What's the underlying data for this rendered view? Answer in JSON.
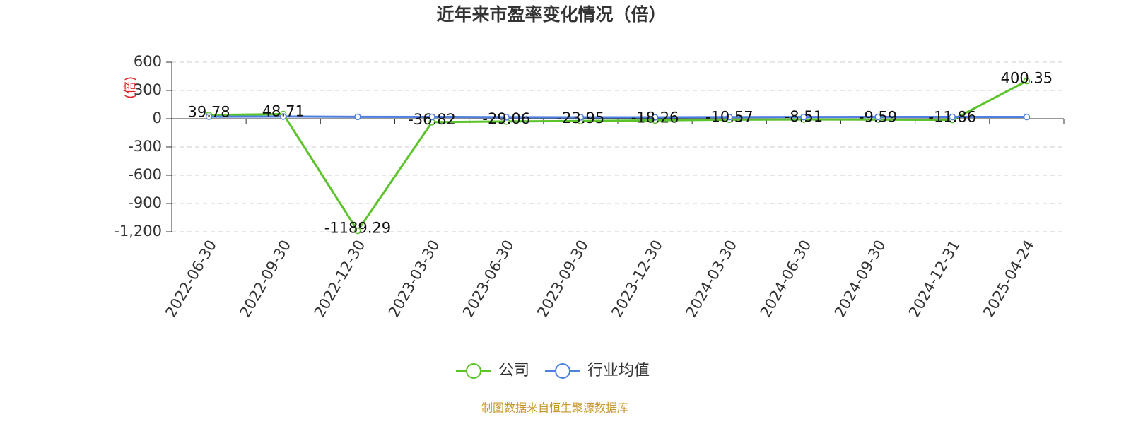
{
  "chart_data": {
    "type": "line",
    "title": "近年来市盈率变化情况（倍）",
    "y_label": "(倍)",
    "source": "制图数据来自恒生聚源数据库",
    "categories": [
      "2022-06-30",
      "2022-09-30",
      "2022-12-30",
      "2023-03-30",
      "2023-06-30",
      "2023-09-30",
      "2023-12-30",
      "2024-03-30",
      "2024-06-30",
      "2024-09-30",
      "2024-12-31",
      "2025-04-24"
    ],
    "series": [
      {
        "name": "公司",
        "color": "#5cc42b",
        "values": [
          39.78,
          48.71,
          -1189.29,
          -36.82,
          -29.06,
          -23.95,
          -18.26,
          -10.57,
          -8.51,
          -9.59,
          -11.86,
          400.35
        ],
        "show_labels": true
      },
      {
        "name": "行业均值",
        "color": "#4f7fe0",
        "values": [
          22,
          23,
          20,
          19,
          16,
          15,
          15,
          17,
          18,
          19,
          19,
          19
        ],
        "show_labels": false
      }
    ],
    "ylim": [
      -1200,
      600
    ],
    "yticks": [
      600,
      300,
      0,
      -300,
      -600,
      -900,
      {
        "value": -1200,
        "label": "-1,200"
      }
    ],
    "grid": true
  }
}
